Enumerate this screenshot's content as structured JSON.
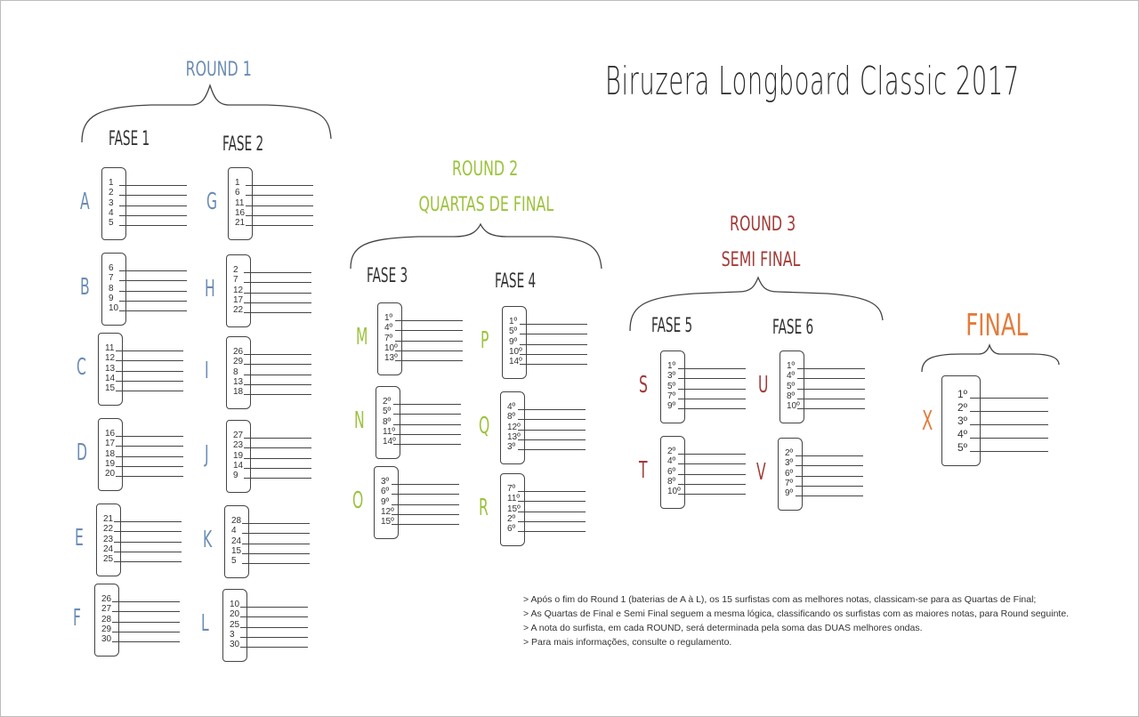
{
  "title": "Biruzera Longboard Classic 2017",
  "colors": {
    "round1": "#6b8cb5",
    "round2": "#9cc23c",
    "round3": "#a23a36",
    "final": "#e47b3c",
    "ink": "#333333"
  },
  "rounds": {
    "r1": {
      "title": "ROUND 1"
    },
    "r2": {
      "title": "ROUND 2",
      "subtitle": "QUARTAS DE FINAL"
    },
    "r3": {
      "title": "ROUND 3",
      "subtitle": "SEMI FINAL"
    },
    "final": {
      "title": "FINAL"
    }
  },
  "phases": {
    "fase1": "FASE 1",
    "fase2": "FASE 2",
    "fase3": "FASE 3",
    "fase4": "FASE 4",
    "fase5": "FASE 5",
    "fase6": "FASE 6"
  },
  "heats": {
    "A": {
      "letter": "A",
      "seeds": [
        "1",
        "2",
        "3",
        "4",
        "5"
      ]
    },
    "B": {
      "letter": "B",
      "seeds": [
        "6",
        "7",
        "8",
        "9",
        "10"
      ]
    },
    "C": {
      "letter": "C",
      "seeds": [
        "11",
        "12",
        "13",
        "14",
        "15"
      ]
    },
    "D": {
      "letter": "D",
      "seeds": [
        "16",
        "17",
        "18",
        "19",
        "20"
      ]
    },
    "E": {
      "letter": "E",
      "seeds": [
        "21",
        "22",
        "23",
        "24",
        "25"
      ]
    },
    "F": {
      "letter": "F",
      "seeds": [
        "26",
        "27",
        "28",
        "29",
        "30"
      ]
    },
    "G": {
      "letter": "G",
      "seeds": [
        "1",
        "6",
        "11",
        "16",
        "21"
      ]
    },
    "H": {
      "letter": "H",
      "seeds": [
        "2",
        "7",
        "12",
        "17",
        "22"
      ]
    },
    "I": {
      "letter": "I",
      "seeds": [
        "26",
        "29",
        "8",
        "13",
        "18"
      ]
    },
    "J": {
      "letter": "J",
      "seeds": [
        "27",
        "23",
        "19",
        "14",
        "9"
      ]
    },
    "K": {
      "letter": "K",
      "seeds": [
        "28",
        "4",
        "24",
        "15",
        "5"
      ]
    },
    "L": {
      "letter": "L",
      "seeds": [
        "10",
        "20",
        "25",
        "3",
        "30"
      ]
    },
    "M": {
      "letter": "M",
      "seeds": [
        "1º",
        "4º",
        "7º",
        "10º",
        "13º"
      ]
    },
    "N": {
      "letter": "N",
      "seeds": [
        "2º",
        "5º",
        "8º",
        "11º",
        "14º"
      ]
    },
    "O": {
      "letter": "O",
      "seeds": [
        "3º",
        "6º",
        "9º",
        "12º",
        "15º"
      ]
    },
    "P": {
      "letter": "P",
      "seeds": [
        "1º",
        "5º",
        "9º",
        "10º",
        "14º"
      ]
    },
    "Q": {
      "letter": "Q",
      "seeds": [
        "4º",
        "8º",
        "12º",
        "13º",
        "3º"
      ]
    },
    "R": {
      "letter": "R",
      "seeds": [
        "7º",
        "11º",
        "15º",
        "2º",
        "6º"
      ]
    },
    "S": {
      "letter": "S",
      "seeds": [
        "1º",
        "3º",
        "5º",
        "7º",
        "9º"
      ]
    },
    "T": {
      "letter": "T",
      "seeds": [
        "2º",
        "4º",
        "6º",
        "8º",
        "10º"
      ]
    },
    "U": {
      "letter": "U",
      "seeds": [
        "1º",
        "4º",
        "5º",
        "8º",
        "10º"
      ]
    },
    "V": {
      "letter": "V",
      "seeds": [
        "2º",
        "3º",
        "6º",
        "7º",
        "9º"
      ]
    },
    "X": {
      "letter": "X",
      "seeds": [
        "1º",
        "2º",
        "3º",
        "4º",
        "5º"
      ]
    }
  },
  "notes": [
    "> Após o fim do Round 1 (baterias de A à L), os 15 surfistas com as melhores notas, classicam-se para as Quartas de Final;",
    "> As Quartas de Final e Semi Final seguem a mesma lógica, classificando os surfistas com as maiores notas, para Round seguinte.",
    "> A nota do surfista, em cada ROUND, será determinada pela soma das DUAS melhores ondas.",
    "> Para mais informações, consulte o regulamento."
  ]
}
